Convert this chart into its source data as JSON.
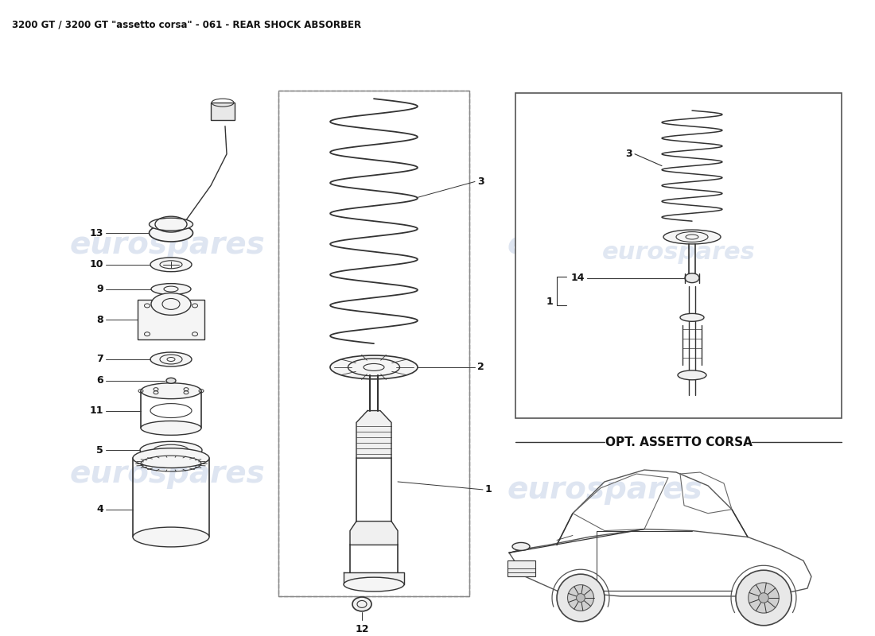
{
  "title": "3200 GT / 3200 GT \"assetto corsa\" - 061 - REAR SHOCK ABSORBER",
  "title_fontsize": 8.5,
  "background_color": "#ffffff",
  "watermark_text": "eurospares",
  "watermark_color": "#c8d4e8",
  "watermark_fontsize": 28,
  "opt_box_label": "OPT. ASSETTO CORSA",
  "line_color": "#333333",
  "label_color": "#111111",
  "label_fontsize": 9
}
